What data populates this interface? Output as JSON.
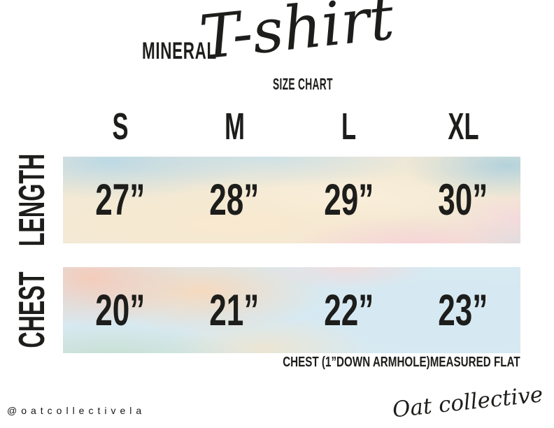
{
  "title": {
    "brand": "MINERAL",
    "script": "T-shirt",
    "subtitle": "SIZE CHART"
  },
  "chart_data": {
    "type": "table",
    "title": "MINERAL T-shirt SIZE CHART",
    "columns": [
      "S",
      "M",
      "L",
      "XL"
    ],
    "rows": [
      {
        "label": "LENGTH",
        "values": [
          "27”",
          "28”",
          "29”",
          "30”"
        ],
        "values_inches": [
          27,
          28,
          29,
          30
        ]
      },
      {
        "label": "CHEST",
        "values": [
          "20”",
          "21”",
          "22”",
          "23”"
        ],
        "values_inches": [
          20,
          21,
          22,
          23
        ]
      }
    ],
    "footnote": "CHEST (1”DOWN ARMHOLE)MEASURED FLAT"
  },
  "footer": {
    "handle": "@oatcollectivela",
    "signature": "Oat collective"
  },
  "colors": {
    "text": "#1d1d1b",
    "background": "#ffffff",
    "length_band_base": "#f3e9d4",
    "length_band_blue": "#bcd8e6",
    "length_band_pink": "#f6d1d8",
    "chest_band_base": "#d7e9f1",
    "chest_band_salmon": "#f6cab7",
    "chest_band_mint": "#c5dece",
    "chest_band_peach": "#f8d8be"
  }
}
